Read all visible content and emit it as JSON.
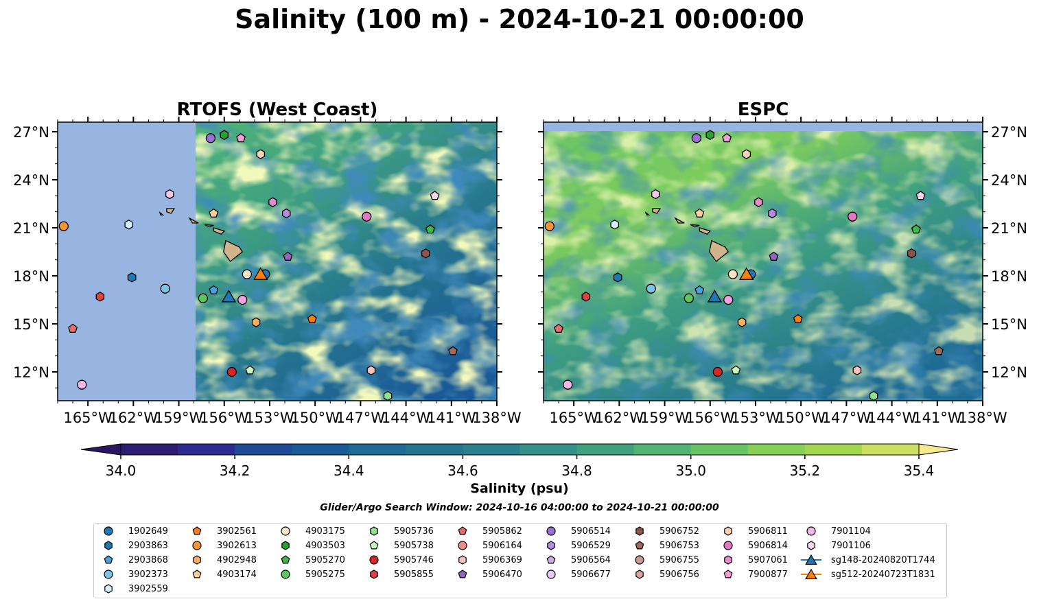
{
  "title": "Salinity (100 m) - 2024-10-21 00:00:00",
  "chart_data": [
    {
      "type": "heatmap",
      "panel": "left",
      "title": "RTOFS (West Coast)",
      "xlim": [
        -167,
        -138
      ],
      "ylim": [
        10.2,
        27.6
      ],
      "xticks": [
        "165°W",
        "162°W",
        "159°W",
        "156°W",
        "153°W",
        "150°W",
        "147°W",
        "144°W",
        "141°W",
        "138°W"
      ],
      "yticks": [
        "27°N",
        "24°N",
        "21°N",
        "18°N",
        "15°N",
        "12°N"
      ],
      "ytick_side": "left",
      "data_west_edge_lon": -157.9,
      "missing_data_color": "#98b4e0"
    },
    {
      "type": "heatmap",
      "panel": "right",
      "title": "ESPC",
      "xlim": [
        -167,
        -138
      ],
      "ylim": [
        10.2,
        27.6
      ],
      "xticks": [
        "165°W",
        "162°W",
        "159°W",
        "156°W",
        "153°W",
        "150°W",
        "147°W",
        "144°W",
        "141°W",
        "138°W"
      ],
      "yticks": [
        "27°N",
        "24°N",
        "21°N",
        "18°N",
        "15°N",
        "12°N"
      ],
      "ytick_side": "right",
      "data_north_edge_lat": 27.0,
      "missing_data_color": "#98b4e0"
    }
  ],
  "colorbar": {
    "label": "Salinity (psu)",
    "min": 34.0,
    "max": 35.4,
    "step": 0.1,
    "ticks": [
      "34.0",
      "34.2",
      "34.4",
      "34.6",
      "34.8",
      "35.0",
      "35.2",
      "35.4"
    ],
    "colors": [
      "#2c1d72",
      "#2d2b91",
      "#1f4a96",
      "#1a5a97",
      "#1e6b94",
      "#25758f",
      "#2c808b",
      "#339187",
      "#41a17f",
      "#52b575",
      "#69c466",
      "#86cf58",
      "#a3d64f",
      "#ccdf62"
    ],
    "under_color": "#2c1660",
    "over_color": "#f7ea8c"
  },
  "search_window": "Glider/Argo Search Window: 2024-10-16 04:00:00 to 2024-10-21 00:00:00",
  "platforms": [
    {
      "id": "1902649",
      "marker": "circle",
      "color": "#1f77b4",
      "lon": -153.3,
      "lat": 18.1
    },
    {
      "id": "2903863",
      "marker": "hexagon",
      "color": "#1f77b4",
      "lon": -162.1,
      "lat": 17.9
    },
    {
      "id": "2903868",
      "marker": "pentagon",
      "color": "#42a5e0",
      "lon": -156.7,
      "lat": 17.1
    },
    {
      "id": "3902373",
      "marker": "circle",
      "color": "#7cc3e8",
      "lon": -159.9,
      "lat": 17.2
    },
    {
      "id": "3902559",
      "marker": "hexagon",
      "color": "#d6f0fb",
      "lon": -162.3,
      "lat": 21.2
    },
    {
      "id": "3902561",
      "marker": "pentagon",
      "color": "#ff7f0e",
      "lon": -150.2,
      "lat": 15.3
    },
    {
      "id": "3902613",
      "marker": "circle",
      "color": "#f99533",
      "lon": -166.6,
      "lat": 21.1
    },
    {
      "id": "4902948",
      "marker": "hexagon",
      "color": "#fbb05e",
      "lon": -153.9,
      "lat": 15.1
    },
    {
      "id": "4903174",
      "marker": "pentagon",
      "color": "#fdd095",
      "lon": -156.7,
      "lat": 21.9
    },
    {
      "id": "4903175",
      "marker": "circle",
      "color": "#fde3c8",
      "lon": -154.5,
      "lat": 18.1
    },
    {
      "id": "4903503",
      "marker": "hexagon",
      "color": "#2ca02c",
      "lon": -156.0,
      "lat": 26.8
    },
    {
      "id": "5905270",
      "marker": "pentagon",
      "color": "#3fb84a",
      "lon": -142.4,
      "lat": 20.9
    },
    {
      "id": "5905275",
      "marker": "circle",
      "color": "#5dc75d",
      "lon": -157.4,
      "lat": 16.6
    },
    {
      "id": "5905736",
      "marker": "hexagon",
      "color": "#8fe08f",
      "lon": -145.2,
      "lat": 10.5
    },
    {
      "id": "5905738",
      "marker": "pentagon",
      "color": "#c8f7c0",
      "lon": -154.3,
      "lat": 12.1
    },
    {
      "id": "5905746",
      "marker": "circle",
      "color": "#d62728",
      "lon": -155.5,
      "lat": 12.0
    },
    {
      "id": "5905855",
      "marker": "hexagon",
      "color": "#e04141",
      "lon": -164.2,
      "lat": 16.7
    },
    {
      "id": "5905862",
      "marker": "pentagon",
      "color": "#e86b6b",
      "lon": -166.0,
      "lat": 14.7
    },
    {
      "id": "5906164",
      "marker": "circle",
      "color": "#f08b8b",
      "lon": -1000,
      "lat": -1000
    },
    {
      "id": "5906369",
      "marker": "hexagon",
      "color": "#f6c3bd",
      "lon": -146.3,
      "lat": 12.1
    },
    {
      "id": "5906470",
      "marker": "pentagon",
      "color": "#9467bd",
      "lon": -151.8,
      "lat": 19.2
    },
    {
      "id": "5906514",
      "marker": "circle",
      "color": "#9b6fd0",
      "lon": -156.9,
      "lat": 26.6
    },
    {
      "id": "5906529",
      "marker": "hexagon",
      "color": "#b58be0",
      "lon": -151.9,
      "lat": 21.9
    },
    {
      "id": "5906564",
      "marker": "pentagon",
      "color": "#ccaaeb",
      "lon": -1000,
      "lat": -1000
    },
    {
      "id": "5906677",
      "marker": "circle",
      "color": "#e6ccf8",
      "lon": -1000,
      "lat": -1000
    },
    {
      "id": "5906752",
      "marker": "hexagon",
      "color": "#8c564b",
      "lon": -142.7,
      "lat": 19.4
    },
    {
      "id": "5906753",
      "marker": "pentagon",
      "color": "#9e6b5f",
      "lon": -140.9,
      "lat": 13.3
    },
    {
      "id": "5906755",
      "marker": "circle",
      "color": "#c49c94",
      "lon": -1000,
      "lat": -1000
    },
    {
      "id": "5906756",
      "marker": "hexagon",
      "color": "#d9a69d",
      "lon": -1000,
      "lat": -1000
    },
    {
      "id": "5906811",
      "marker": "hexagon",
      "color": "#fbd1b8",
      "lon": -153.6,
      "lat": 25.6
    },
    {
      "id": "5906814",
      "marker": "circle",
      "color": "#e377c2",
      "lon": -146.6,
      "lat": 21.7
    },
    {
      "id": "5907061",
      "marker": "hexagon",
      "color": "#e48bd0",
      "lon": -152.8,
      "lat": 22.6
    },
    {
      "id": "7900877",
      "marker": "pentagon",
      "color": "#f29ed8",
      "lon": -154.9,
      "lat": 26.6
    },
    {
      "id": "7901104",
      "marker": "circle",
      "color": "#f4b8e8",
      "lon": -1000,
      "lat": -1000
    },
    {
      "id": "7901106",
      "marker": "hexagon",
      "color": "#fad5ee",
      "lon": -1000,
      "lat": -1000
    },
    {
      "id": "sg148-20240820T1744",
      "marker": "triangle",
      "color": "#1f77b4",
      "lon": -155.7,
      "lat": 16.7,
      "line": true
    },
    {
      "id": "sg512-20240723T1831",
      "marker": "triangle",
      "color": "#ff7f0e",
      "lon": -153.6,
      "lat": 18.1,
      "line": true
    }
  ],
  "extra_points": [
    {
      "marker": "circle",
      "color": "#f4b8e8",
      "lon": -165.4,
      "lat": 11.2
    },
    {
      "marker": "pentagon",
      "color": "#ffd3ec",
      "lon": -142.1,
      "lat": 23.0
    },
    {
      "marker": "circle",
      "color": "#f2a0df",
      "lon": -154.8,
      "lat": 16.5
    },
    {
      "marker": "hexagon",
      "color": "#f7c6e8",
      "lon": -159.6,
      "lat": 23.1
    }
  ]
}
